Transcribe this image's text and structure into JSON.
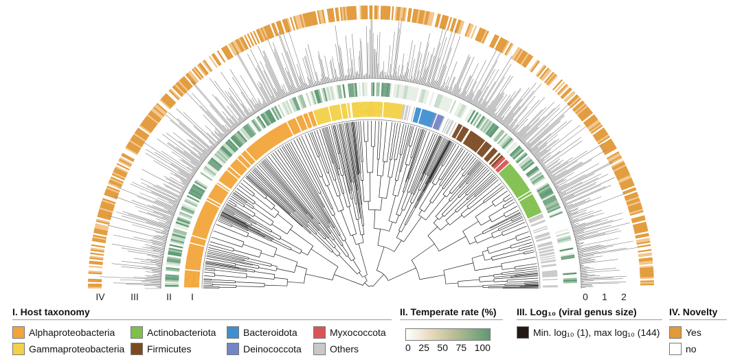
{
  "ring_labels": [
    "IV",
    "III",
    "II",
    "I"
  ],
  "scale_ticks": [
    "0",
    "1",
    "2"
  ],
  "legend_taxonomy": {
    "title": "I. Host taxonomy",
    "items": [
      {
        "label": "Alphaproteobacteria",
        "color": "#f2a53a"
      },
      {
        "label": "Gammaproteobacteria",
        "color": "#f3d045"
      },
      {
        "label": "Actinobacteriota",
        "color": "#7fbf4d"
      },
      {
        "label": "Firmicutes",
        "color": "#7b4a22"
      },
      {
        "label": "Bacteroidota",
        "color": "#3f8fd0"
      },
      {
        "label": "Deinococcota",
        "color": "#7385c5"
      },
      {
        "label": "Myxococcota",
        "color": "#d95555"
      },
      {
        "label": "Others",
        "color": "#c8c8c8"
      }
    ]
  },
  "legend_temperate": {
    "title": "II. Temperate rate (%)",
    "ticks": [
      "0",
      "25",
      "50",
      "75",
      "100"
    ]
  },
  "legend_genus": {
    "title": "III. Log₁₀ (viral genus size)",
    "item": "Min. log₁₀ (1), max log₁₀ (144)",
    "color": "#231815"
  },
  "legend_novelty": {
    "title": "IV. Novelty",
    "items": [
      {
        "label": "Yes",
        "color": "#e29a3a"
      },
      {
        "label": "no",
        "color": "#ffffff"
      }
    ]
  }
}
